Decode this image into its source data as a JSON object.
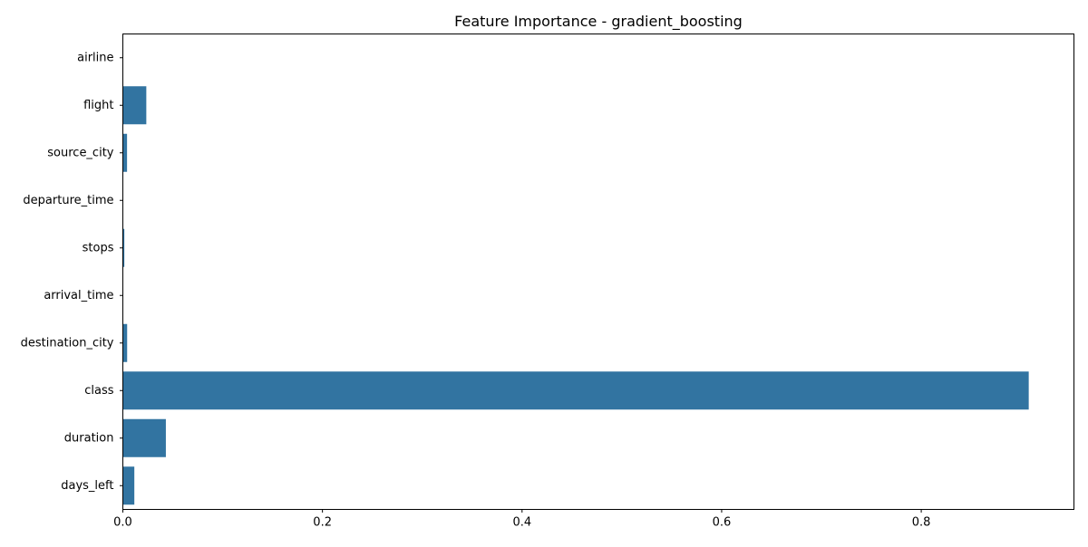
{
  "chart_data": {
    "type": "bar",
    "orientation": "horizontal",
    "title": "Feature Importance - gradient_boosting",
    "xlabel": "",
    "ylabel": "",
    "categories": [
      "airline",
      "flight",
      "source_city",
      "departure_time",
      "stops",
      "arrival_time",
      "destination_city",
      "class",
      "duration",
      "days_left"
    ],
    "values": [
      0.0002,
      0.0235,
      0.0042,
      0.0003,
      0.0015,
      0.0003,
      0.0043,
      0.9077,
      0.0431,
      0.0115
    ],
    "xlim": [
      0,
      0.953
    ],
    "xticks": [
      0.0,
      0.2,
      0.4,
      0.6,
      0.8
    ],
    "xtick_labels": [
      "0.0",
      "0.2",
      "0.4",
      "0.6",
      "0.8"
    ],
    "grid": false,
    "bar_color": "#3274a1"
  }
}
